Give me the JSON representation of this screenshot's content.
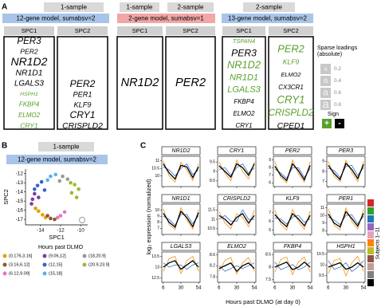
{
  "panel_labels": [
    "A",
    "B",
    "C"
  ],
  "panel_a": {
    "groups": [
      {
        "headers": [
          "1-sample"
        ],
        "model": "12-gene model, sumabsv=2",
        "model_color": "#a9c4e8",
        "columns": [
          {
            "title": "SPC1",
            "genes": [
              {
                "name": "PER3",
                "loading": 0.55,
                "sign": "-"
              },
              {
                "name": "PER2",
                "loading": 0.3,
                "sign": "-"
              },
              {
                "name": "NR1D2",
                "loading": 0.75,
                "sign": "-"
              },
              {
                "name": "NR1D1",
                "loading": 0.45,
                "sign": "-"
              },
              {
                "name": "LGALS3",
                "loading": 0.4,
                "sign": "-"
              },
              {
                "name": "HSPH1",
                "loading": 0.15,
                "sign": "+"
              },
              {
                "name": "FKBP4",
                "loading": 0.25,
                "sign": "+"
              },
              {
                "name": "ELMO2",
                "loading": 0.25,
                "sign": "+"
              },
              {
                "name": "CRY1",
                "loading": 0.3,
                "sign": "+"
              }
            ]
          },
          {
            "title": "SPC2",
            "genes": [
              {
                "name": "PER2",
                "loading": 0.6,
                "sign": "-"
              },
              {
                "name": "PER1",
                "loading": 0.35,
                "sign": "-"
              },
              {
                "name": "KLF9",
                "loading": 0.35,
                "sign": "-"
              },
              {
                "name": "CRY1",
                "loading": 0.6,
                "sign": "-"
              },
              {
                "name": "CRISPLD2",
                "loading": 0.45,
                "sign": "-"
              }
            ]
          }
        ]
      },
      {
        "headers": [
          "1-sample",
          "2-sample"
        ],
        "model": "2-gene model, sumabsv=1",
        "model_color": "#f2a6a6",
        "columns": [
          {
            "title": "SPC1",
            "genes": [
              {
                "name": "NR1D2",
                "loading": 0.8,
                "sign": "-"
              }
            ]
          },
          {
            "title": "SPC2",
            "genes": [
              {
                "name": "PER2",
                "loading": 0.8,
                "sign": "-"
              }
            ]
          }
        ]
      },
      {
        "headers": [
          "2-sample"
        ],
        "model": "13-gene model, sumabsv=2",
        "model_color": "#a9c4e8",
        "columns": [
          {
            "title": "SPC1",
            "genes": [
              {
                "name": "TSPAN4",
                "loading": 0.2,
                "sign": "+"
              },
              {
                "name": "PER3",
                "loading": 0.6,
                "sign": "-"
              },
              {
                "name": "NR1D2",
                "loading": 0.65,
                "sign": "+"
              },
              {
                "name": "NR1D1",
                "loading": 0.5,
                "sign": "+"
              },
              {
                "name": "LGALS3",
                "loading": 0.5,
                "sign": "+"
              },
              {
                "name": "FKBP4",
                "loading": 0.25,
                "sign": "-"
              },
              {
                "name": "ELMO2",
                "loading": 0.25,
                "sign": "-"
              },
              {
                "name": "CRY1",
                "loading": 0.25,
                "sign": "-"
              }
            ]
          },
          {
            "title": "SPC2",
            "genes": [
              {
                "name": "PER2",
                "loading": 0.65,
                "sign": "+"
              },
              {
                "name": "KLF9",
                "loading": 0.3,
                "sign": "+"
              },
              {
                "name": "ELMO2",
                "loading": 0.2,
                "sign": "-"
              },
              {
                "name": "CX3CR1",
                "loading": 0.25,
                "sign": "-"
              },
              {
                "name": "CRY1",
                "loading": 0.7,
                "sign": "+"
              },
              {
                "name": "CRISPLD2",
                "loading": 0.55,
                "sign": "+"
              },
              {
                "name": "CPED1",
                "loading": 0.45,
                "sign": "-"
              }
            ]
          }
        ]
      }
    ],
    "legend": {
      "title": [
        "Sparse loadings",
        "(absolute)"
      ],
      "glyph": "a",
      "loadings": [
        0.2,
        0.4,
        0.6,
        0.8
      ],
      "sign_title": "Sign",
      "signs": [
        {
          "label": "+",
          "color": "#5aa02c"
        },
        {
          "label": "-",
          "color": "#000000"
        }
      ]
    }
  },
  "panel_b": {
    "header": "1-sample",
    "model": "12-gene model, sumabsv=2",
    "model_color": "#a9c4e8",
    "chart_data": {
      "type": "scatter",
      "xlabel": "SPC1",
      "ylabel": "SPC2",
      "x": [
        -14.2,
        -13.8,
        -14.5,
        -13.5,
        -13.0,
        -12.6,
        -13.3,
        -12.0,
        -11.6,
        -12.3,
        -14.8,
        -14.6,
        -14.9,
        -14.2,
        -14.3,
        -13.9,
        -14.6,
        -13.6,
        -13.0,
        -12.5,
        -13.3,
        -11.8,
        -11.3,
        -12.1,
        -10.6,
        -10.2,
        -10.9,
        -10.4,
        -11.0
      ],
      "y": [
        -16.1,
        -16.5,
        -15.8,
        -16.8,
        -16.9,
        -17.0,
        -16.6,
        -16.6,
        -16.2,
        -16.8,
        -14.8,
        -14.2,
        -15.3,
        -14.6,
        -13.3,
        -12.9,
        -13.7,
        -13.8,
        -12.3,
        -12.1,
        -12.7,
        -12.3,
        -12.6,
        -12.8,
        -13.2,
        -13.7,
        -14.1,
        -14.6,
        -13.0
      ],
      "group": [
        0,
        0,
        0,
        0,
        1,
        1,
        1,
        2,
        2,
        2,
        3,
        3,
        3,
        3,
        4,
        4,
        4,
        4,
        5,
        5,
        5,
        6,
        6,
        6,
        7,
        7,
        7,
        7,
        7
      ],
      "xlim": [
        -15.5,
        -9.3
      ],
      "ylim": [
        -17.6,
        -11.5
      ],
      "xticks": [
        -14,
        -12,
        -10
      ],
      "yticks": [
        -17,
        -16,
        -15,
        -14,
        -13,
        -12
      ],
      "legend_title": "Hours past DLMO",
      "groups": [
        {
          "name": "(0.176,3.16]",
          "color": "#e69f00"
        },
        {
          "name": "(3.16,6.12]",
          "color": "#8c5a2b"
        },
        {
          "name": "(6.12,9.09]",
          "color": "#e377c2"
        },
        {
          "name": "(9.06,12]",
          "color": "#7b3f9e"
        },
        {
          "name": "(12,15]",
          "color": "#3a5fcd"
        },
        {
          "name": "(15,18]",
          "color": "#56b4e9"
        },
        {
          "name": "(18,20.9]",
          "color": "#999999"
        },
        {
          "name": "(20.9,23.9]",
          "color": "#9bbb30"
        }
      ]
    }
  },
  "panel_c": {
    "ylabel": "log₂ expression (normalized)",
    "xlabel": "Hours past DLMO (at day 0)",
    "x": [
      6,
      14,
      22,
      30,
      38,
      46,
      54
    ],
    "xlim": [
      4,
      56
    ],
    "xticks": [
      6,
      30,
      54
    ],
    "subjects_label": "Subjects 1–11",
    "subject_colors": [
      "#d62728",
      "#2ca02c",
      "#1f77b4",
      "#9467bd",
      "#e6a0c0",
      "#ff7f0e",
      "#bcbd22",
      "#8c564b",
      "#c49c94",
      "#7f7f7f",
      "#000000"
    ],
    "plots": [
      {
        "title": "NR1D2",
        "ylim": [
          9.3,
          11.3
        ],
        "yticks": [
          10,
          10.5,
          11
        ],
        "series": [
          {
            "color": "#f0a030",
            "values": [
              11,
              10.0,
              9.6,
              10.9,
              10.4,
              9.7,
              10.8
            ]
          },
          {
            "color": "#4a7fd0",
            "values": [
              10.6,
              10.4,
              10.0,
              10.5,
              10.8,
              10.1,
              10.4
            ]
          },
          {
            "color": "#000000",
            "values": [
              10.8,
              10.2,
              9.8,
              10.7,
              10.6,
              9.9,
              10.6
            ]
          }
        ]
      },
      {
        "title": "CRY1",
        "ylim": [
          8.2,
          9.8
        ],
        "yticks": [
          8.5,
          9,
          9.5
        ],
        "series": [
          {
            "color": "#f0a030",
            "values": [
              9.5,
              8.9,
              8.5,
              9.6,
              9.0,
              8.6,
              9.5
            ]
          },
          {
            "color": "#4a7fd0",
            "values": [
              9.1,
              9.2,
              8.8,
              9.2,
              9.4,
              8.9,
              9.2
            ]
          },
          {
            "color": "#000000",
            "values": [
              9.3,
              9.0,
              8.7,
              9.4,
              9.2,
              8.8,
              9.4
            ]
          }
        ]
      },
      {
        "title": "PER2",
        "ylim": [
          5.5,
          9.5
        ],
        "yticks": [
          6,
          7,
          8,
          9
        ],
        "series": [
          {
            "color": "#f0a030",
            "values": [
              8.8,
              6.7,
              6.0,
              9.0,
              7.2,
              6.1,
              8.8
            ]
          },
          {
            "color": "#4a7fd0",
            "values": [
              7.8,
              7.3,
              6.6,
              8.0,
              8.0,
              6.7,
              7.9
            ]
          },
          {
            "color": "#000000",
            "values": [
              8.2,
              7.0,
              6.3,
              8.5,
              7.6,
              6.4,
              8.3
            ]
          }
        ]
      },
      {
        "title": "PER3",
        "ylim": [
          6.5,
          9.5
        ],
        "yticks": [
          7,
          8,
          9
        ],
        "series": [
          {
            "color": "#f0a030",
            "values": [
              9.0,
              7.5,
              7.0,
              9.1,
              7.9,
              7.0,
              9.0
            ]
          },
          {
            "color": "#4a7fd0",
            "values": [
              8.3,
              8.1,
              7.4,
              8.5,
              8.6,
              7.6,
              8.4
            ]
          },
          {
            "color": "#000000",
            "values": [
              8.6,
              7.8,
              7.2,
              8.8,
              8.2,
              7.3,
              8.7
            ]
          }
        ]
      },
      {
        "title": "NR1D1",
        "ylim": [
          6,
          11
        ],
        "yticks": [
          7,
          8,
          9,
          10
        ],
        "series": [
          {
            "color": "#f0a030",
            "values": [
              10.2,
              7.6,
              6.8,
              10.4,
              8.4,
              6.9,
              10.1
            ]
          },
          {
            "color": "#4a7fd0",
            "values": [
              9.0,
              8.5,
              7.5,
              9.3,
              9.3,
              7.8,
              9.1
            ]
          },
          {
            "color": "#000000",
            "values": [
              9.5,
              8.0,
              7.2,
              9.8,
              8.8,
              7.3,
              9.6
            ]
          }
        ]
      },
      {
        "title": "CRISPLD2",
        "ylim": [
          10.2,
          11.8
        ],
        "yticks": [
          10.5,
          11,
          11.5
        ],
        "series": [
          {
            "color": "#f0a030",
            "values": [
              11.4,
              10.8,
              10.5,
              11.3,
              11.1,
              10.6,
              11.5
            ]
          },
          {
            "color": "#4a7fd0",
            "values": [
              11.0,
              11.2,
              10.9,
              10.9,
              11.5,
              11.0,
              11.0
            ]
          },
          {
            "color": "#000000",
            "values": [
              11.2,
              11.0,
              10.7,
              11.1,
              11.3,
              10.8,
              11.2
            ]
          }
        ]
      },
      {
        "title": "KLF9",
        "ylim": [
          4.5,
          8
        ],
        "yticks": [
          5,
          6,
          7
        ],
        "series": [
          {
            "color": "#f0a030",
            "values": [
              7.3,
              5.7,
              5.0,
              7.4,
              6.0,
              5.1,
              7.2
            ]
          },
          {
            "color": "#4a7fd0",
            "values": [
              6.4,
              6.3,
              5.7,
              6.5,
              6.7,
              5.9,
              6.3
            ]
          },
          {
            "color": "#000000",
            "values": [
              6.8,
              6.0,
              5.4,
              6.9,
              6.3,
              5.5,
              6.7
            ]
          }
        ]
      },
      {
        "title": "PER1",
        "ylim": [
          7.5,
          11.5
        ],
        "yticks": [
          8,
          9,
          10,
          11
        ],
        "series": [
          {
            "color": "#f0a030",
            "values": [
              10.9,
              8.7,
              8.1,
              11.0,
              9.2,
              8.2,
              10.8
            ]
          },
          {
            "color": "#4a7fd0",
            "values": [
              9.8,
              9.4,
              8.8,
              10.0,
              10.1,
              8.9,
              9.9
            ]
          },
          {
            "color": "#000000",
            "values": [
              10.2,
              9.0,
              8.5,
              10.5,
              9.6,
              8.6,
              10.3
            ]
          }
        ]
      },
      {
        "title": "LGALS3",
        "ylim": [
          12.3,
          13.7
        ],
        "yticks": [
          12.5,
          13,
          13.5
        ],
        "series": [
          {
            "color": "#f0a030",
            "values": [
              12.8,
              13.4,
              13.5,
              12.7,
              13.3,
              13.5,
              12.8
            ]
          },
          {
            "color": "#4a7fd0",
            "values": [
              13.2,
              13.0,
              13.1,
              13.1,
              12.9,
              13.1,
              13.2
            ]
          },
          {
            "color": "#000000",
            "values": [
              13.0,
              13.2,
              13.3,
              12.9,
              13.1,
              13.3,
              13.0
            ]
          }
        ]
      },
      {
        "title": "ELMO2",
        "ylim": [
          7.6,
          8.7
        ],
        "yticks": [
          7.8,
          8.2,
          8.6
        ],
        "series": [
          {
            "color": "#f0a030",
            "values": [
              8.0,
              8.4,
              8.5,
              7.9,
              8.3,
              8.5,
              8.0
            ]
          },
          {
            "color": "#4a7fd0",
            "values": [
              8.2,
              8.0,
              8.1,
              8.2,
              8.1,
              8.2,
              8.3
            ]
          },
          {
            "color": "#000000",
            "values": [
              8.1,
              8.2,
              8.3,
              8.0,
              8.2,
              8.3,
              8.1
            ]
          }
        ]
      },
      {
        "title": "FKBP4",
        "ylim": [
          7.4,
          8.6
        ],
        "yticks": [
          7.5,
          8,
          8.5
        ],
        "series": [
          {
            "color": "#f0a030",
            "values": [
              7.8,
              8.3,
              8.4,
              7.7,
              8.2,
              8.4,
              7.8
            ]
          },
          {
            "color": "#4a7fd0",
            "values": [
              8.2,
              7.9,
              8.0,
              8.1,
              7.9,
              8.0,
              8.2
            ]
          },
          {
            "color": "#000000",
            "values": [
              8.0,
              8.1,
              8.2,
              7.9,
              8.0,
              8.2,
              8.0
            ]
          }
        ]
      },
      {
        "title": "HSPH1",
        "ylim": [
          9.2,
          10.6
        ],
        "yticks": [
          9.5,
          10,
          10.5
        ],
        "series": [
          {
            "color": "#f0a030",
            "values": [
              9.6,
              10.2,
              10.3,
              9.5,
              10.1,
              10.4,
              9.7
            ]
          },
          {
            "color": "#4a7fd0",
            "values": [
              10.2,
              9.8,
              9.9,
              10.1,
              9.7,
              9.9,
              10.2
            ]
          },
          {
            "color": "#000000",
            "values": [
              9.9,
              10.0,
              10.1,
              9.8,
              9.9,
              10.1,
              9.9
            ]
          }
        ]
      }
    ]
  }
}
